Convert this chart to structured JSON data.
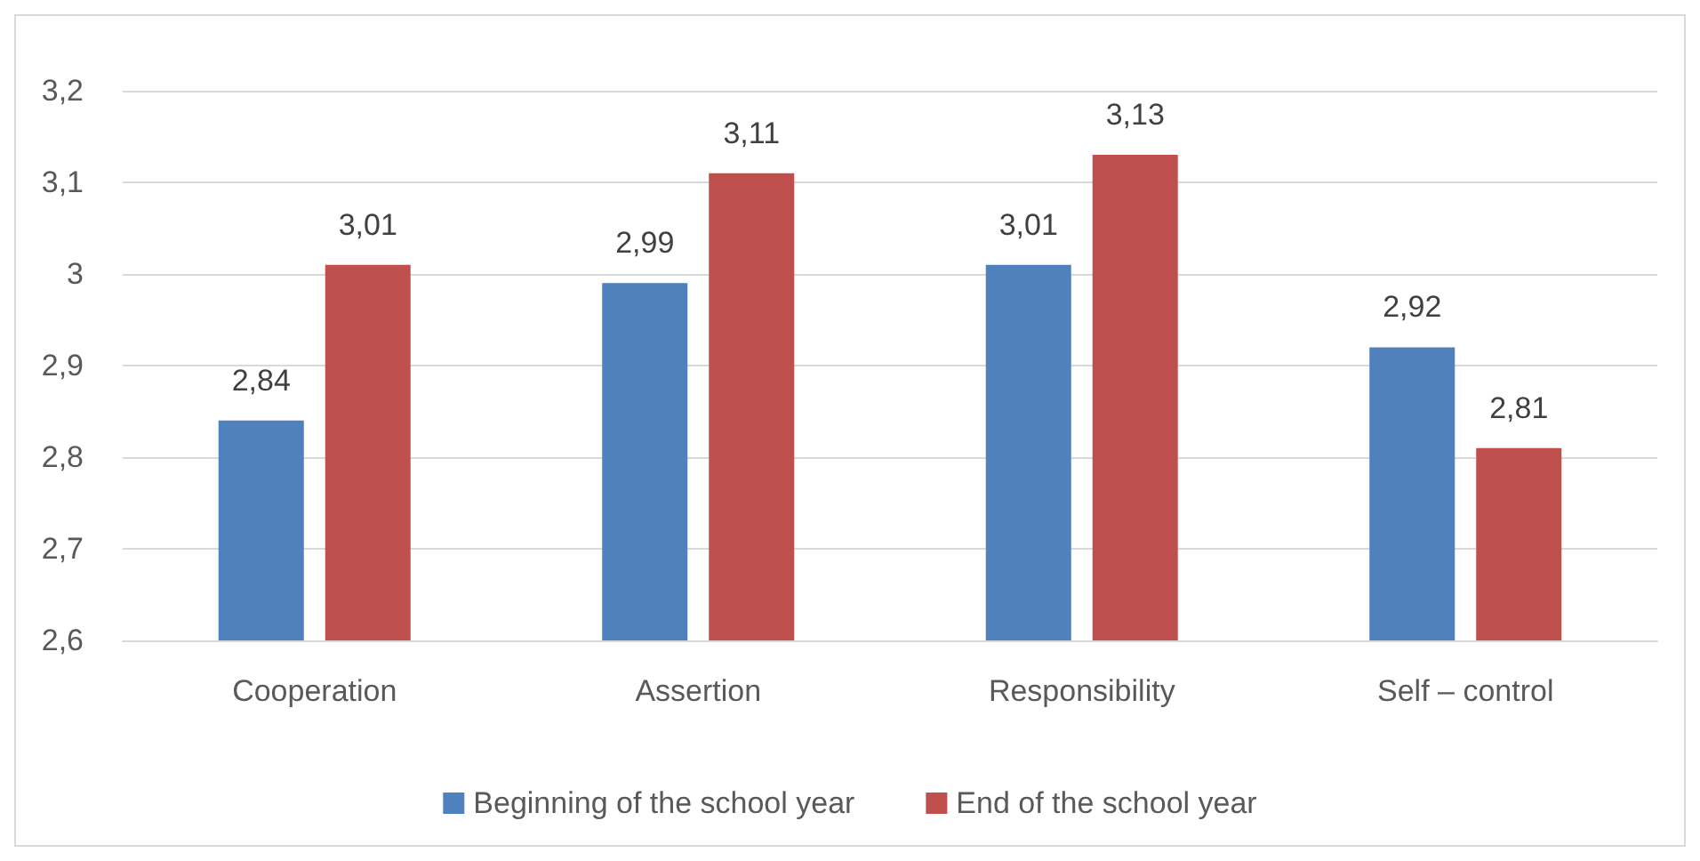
{
  "chart_data": {
    "type": "bar",
    "categories": [
      "Cooperation",
      "Assertion",
      "Responsibility",
      "Self – control"
    ],
    "series": [
      {
        "name": "Beginning of the school year",
        "color": "#4f81bd",
        "values": [
          2.84,
          2.99,
          3.01,
          2.92
        ],
        "value_labels": [
          "2,84",
          "2,99",
          "3,01",
          "2,92"
        ]
      },
      {
        "name": "End of the school year",
        "color": "#c0504d",
        "values": [
          3.01,
          3.11,
          3.13,
          2.81
        ],
        "value_labels": [
          "3,01",
          "3,11",
          "3,13",
          "2,81"
        ]
      }
    ],
    "ylim": [
      2.6,
      3.2
    ],
    "yticks": [
      {
        "value": 2.6,
        "label": "2,6"
      },
      {
        "value": 2.7,
        "label": "2,7"
      },
      {
        "value": 2.8,
        "label": "2,8"
      },
      {
        "value": 2.9,
        "label": "2,9"
      },
      {
        "value": 3,
        "label": "3"
      },
      {
        "value": 3.1,
        "label": "3,1"
      },
      {
        "value": 3.2,
        "label": "3,2"
      }
    ],
    "grid": "y",
    "legend": "bottom"
  }
}
